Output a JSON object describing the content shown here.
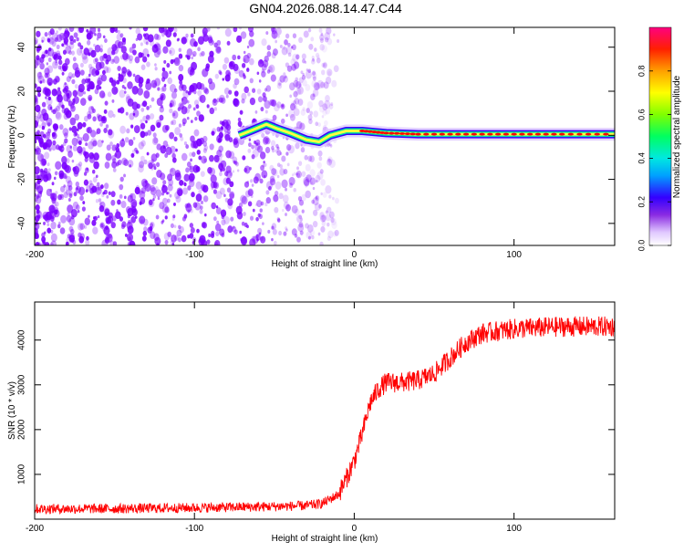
{
  "title": "GN04.2026.088.14.47.C44",
  "chart_data": [
    {
      "type": "heatmap",
      "xlabel": "Height of straight line (km)",
      "ylabel": "Frequency (Hz)",
      "xlim": [
        -200,
        163
      ],
      "ylim": [
        -50,
        49
      ],
      "xticks": [
        -200,
        -100,
        0,
        100
      ],
      "yticks": [
        -40,
        -20,
        0,
        20,
        40
      ],
      "colorbar": {
        "label": "Normalized spectral amplitude",
        "range": [
          0,
          1
        ],
        "ticks": [
          0,
          0.2,
          0.4,
          0.6,
          0.8
        ]
      },
      "ridge": [
        {
          "x": -72,
          "y": 0
        },
        {
          "x": -65,
          "y": 2
        },
        {
          "x": -55,
          "y": 5
        },
        {
          "x": -48,
          "y": 3
        },
        {
          "x": -40,
          "y": 1
        },
        {
          "x": -30,
          "y": -2
        },
        {
          "x": -22,
          "y": -3
        },
        {
          "x": -15,
          "y": 0
        },
        {
          "x": -5,
          "y": 2
        },
        {
          "x": 5,
          "y": 2
        },
        {
          "x": 20,
          "y": 1
        },
        {
          "x": 40,
          "y": 0.5
        },
        {
          "x": 70,
          "y": 0.5
        },
        {
          "x": 100,
          "y": 0.5
        },
        {
          "x": 130,
          "y": 0.5
        },
        {
          "x": 163,
          "y": 0.5
        }
      ],
      "colors": {
        "noise": "#7a00ff",
        "ridge_core": "#ff0000",
        "ridge_edge": "#00e0a0"
      }
    },
    {
      "type": "line",
      "xlabel": "Height of straight line (km)",
      "ylabel": "SNR (10 * v/v)",
      "xlim": [
        -200,
        163
      ],
      "ylim": [
        0,
        4850
      ],
      "xticks": [
        -200,
        -100,
        0,
        100
      ],
      "yticks": [
        1000,
        2000,
        3000,
        4000
      ],
      "series": [
        {
          "color": "#ff0000",
          "points": [
            {
              "x": -200,
              "y": 230
            },
            {
              "x": -150,
              "y": 235
            },
            {
              "x": -100,
              "y": 255
            },
            {
              "x": -60,
              "y": 275
            },
            {
              "x": -30,
              "y": 300
            },
            {
              "x": -20,
              "y": 350
            },
            {
              "x": -10,
              "y": 550
            },
            {
              "x": -5,
              "y": 900
            },
            {
              "x": 0,
              "y": 1300
            },
            {
              "x": 5,
              "y": 1900
            },
            {
              "x": 10,
              "y": 2600
            },
            {
              "x": 15,
              "y": 2900
            },
            {
              "x": 20,
              "y": 3050
            },
            {
              "x": 30,
              "y": 3050
            },
            {
              "x": 40,
              "y": 3100
            },
            {
              "x": 50,
              "y": 3250
            },
            {
              "x": 60,
              "y": 3600
            },
            {
              "x": 70,
              "y": 3950
            },
            {
              "x": 80,
              "y": 4150
            },
            {
              "x": 100,
              "y": 4250
            },
            {
              "x": 130,
              "y": 4300
            },
            {
              "x": 163,
              "y": 4300
            }
          ]
        }
      ]
    }
  ]
}
